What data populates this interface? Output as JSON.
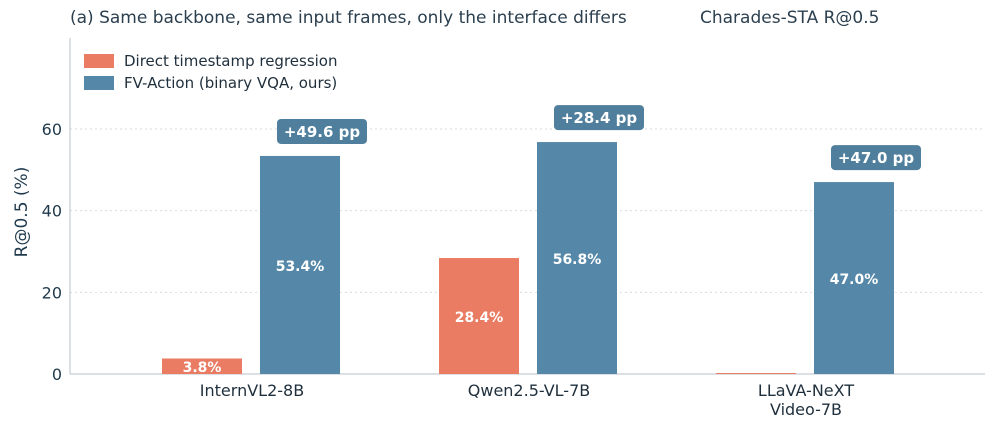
{
  "title_left": "(a) Same backbone, same input frames, only the interface differs",
  "title_right": "Charades-STA  R@0.5",
  "chart_data": {
    "type": "bar",
    "categories": [
      "InternVL2-8B",
      "Qwen2.5-VL-7B",
      "LLaVA-NeXT\nVideo-7B"
    ],
    "series": [
      {
        "name": "Direct timestamp regression",
        "values": [
          3.8,
          28.4,
          0.0
        ],
        "labels": [
          "3.8%",
          "28.4%",
          ""
        ],
        "color": "#e97c62"
      },
      {
        "name": "FV-Action (binary VQA, ours)",
        "values": [
          53.4,
          56.8,
          47.0
        ],
        "labels": [
          "53.4%",
          "56.8%",
          "47.0%"
        ],
        "color": "#5587a8"
      }
    ],
    "annotations": [
      "+49.6 pp",
      "+28.4 pp",
      "+47.0 pp"
    ],
    "annotation_color": "#4f7f9c",
    "ylabel": "R@0.5 (%)",
    "ylim": [
      0,
      60
    ],
    "yticks": [
      0,
      20,
      40,
      60
    ],
    "grid": true,
    "legend": "top-left"
  }
}
